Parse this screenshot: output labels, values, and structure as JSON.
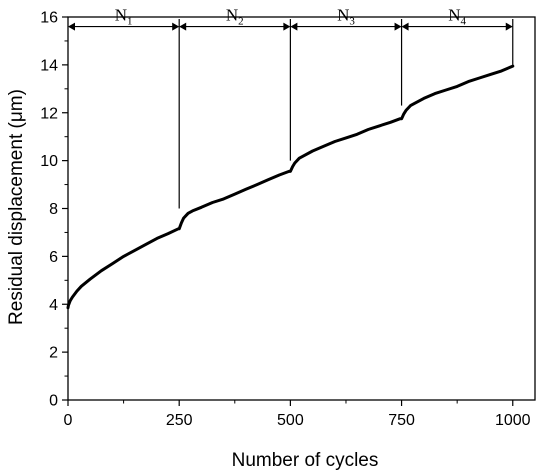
{
  "chart_data": {
    "type": "line",
    "xlabel": "Number of cycles",
    "ylabel": "Residual displacement (μm)",
    "xlim": [
      0,
      1050
    ],
    "ylim": [
      0,
      16
    ],
    "xticks": [
      "0",
      "250",
      "500",
      "750",
      "1000"
    ],
    "yticks": [
      "0",
      "2",
      "4",
      "6",
      "8",
      "10",
      "12",
      "14",
      "16"
    ],
    "grid": false,
    "legend": "none",
    "series": [
      {
        "color": "#000000",
        "x": [
          0,
          1,
          3,
          5,
          10,
          20,
          30,
          50,
          75,
          100,
          125,
          150,
          175,
          200,
          225,
          248,
          250,
          255,
          260,
          270,
          280,
          300,
          325,
          350,
          375,
          400,
          425,
          450,
          475,
          497,
          500,
          505,
          510,
          520,
          530,
          550,
          575,
          600,
          625,
          650,
          675,
          700,
          725,
          747,
          750,
          755,
          760,
          770,
          780,
          800,
          825,
          850,
          875,
          900,
          925,
          950,
          975,
          1000
        ],
        "y": [
          3.85,
          3.95,
          4.05,
          4.15,
          4.3,
          4.55,
          4.75,
          5.05,
          5.4,
          5.7,
          6.0,
          6.25,
          6.5,
          6.75,
          6.95,
          7.15,
          7.15,
          7.4,
          7.6,
          7.8,
          7.9,
          8.05,
          8.25,
          8.4,
          8.6,
          8.8,
          9.0,
          9.2,
          9.4,
          9.55,
          9.55,
          9.75,
          9.9,
          10.1,
          10.2,
          10.4,
          10.6,
          10.8,
          10.95,
          11.1,
          11.3,
          11.45,
          11.6,
          11.75,
          11.75,
          11.95,
          12.1,
          12.3,
          12.4,
          12.6,
          12.8,
          12.95,
          13.1,
          13.3,
          13.45,
          13.6,
          13.75,
          13.95
        ]
      }
    ],
    "phases": [
      {
        "label_main": "N",
        "label_sub": "1",
        "start": 0,
        "end": 250,
        "line_bottom": 8.0
      },
      {
        "label_main": "N",
        "label_sub": "2",
        "start": 250,
        "end": 500,
        "line_bottom": 10.0
      },
      {
        "label_main": "N",
        "label_sub": "3",
        "start": 500,
        "end": 750,
        "line_bottom": 12.3
      },
      {
        "label_main": "N",
        "label_sub": "4",
        "start": 750,
        "end": 1000,
        "line_bottom": 14.0
      }
    ],
    "phase_arrow_y": 15.6
  }
}
